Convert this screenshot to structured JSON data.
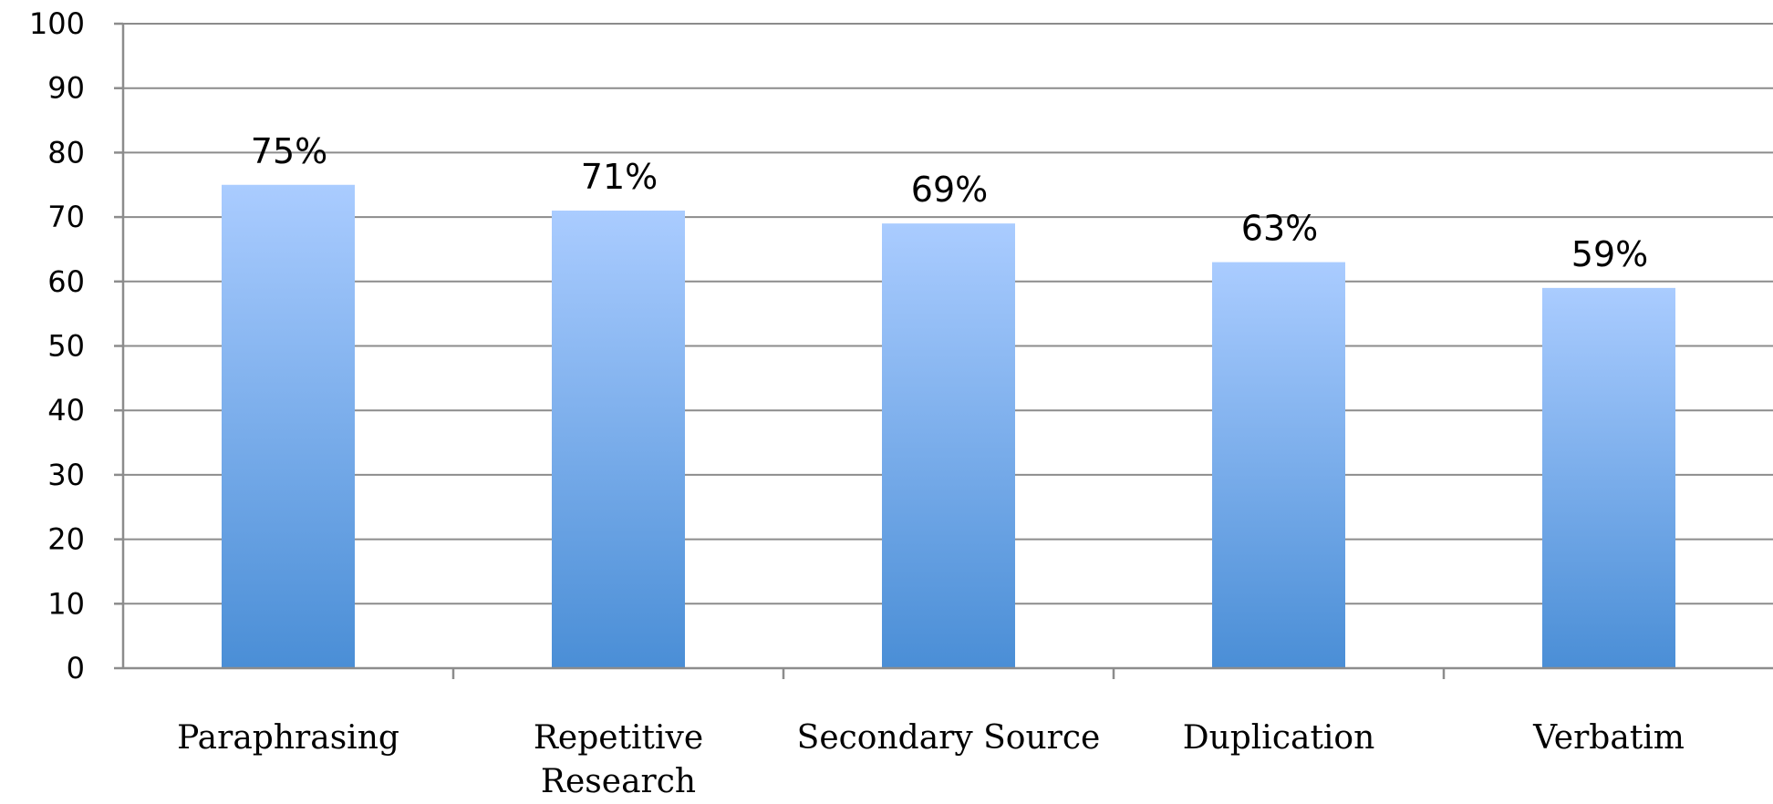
{
  "chart_data": {
    "type": "bar",
    "title": "",
    "xlabel": "",
    "ylabel": "",
    "categories": [
      "Paraphrasing",
      "Repetitive Research",
      "Secondary Source",
      "Duplication",
      "Verbatim"
    ],
    "category_label_lines": [
      [
        "Paraphrasing"
      ],
      [
        "Repetitive",
        "Research"
      ],
      [
        "Secondary Source"
      ],
      [
        "Duplication"
      ],
      [
        "Verbatim"
      ]
    ],
    "values": [
      75,
      71,
      69,
      63,
      59
    ],
    "data_labels": [
      "75%",
      "71%",
      "69%",
      "63%",
      "59%"
    ],
    "ylim": [
      0,
      100
    ],
    "yticks": [
      0,
      10,
      20,
      30,
      40,
      50,
      60,
      70,
      80,
      90,
      100
    ],
    "grid": true,
    "legend": "none",
    "colors": {
      "bar_top": "#aaccff",
      "bar_bottom": "#4a8ed6",
      "grid": "#8c8c8c",
      "text": "#000000"
    }
  }
}
